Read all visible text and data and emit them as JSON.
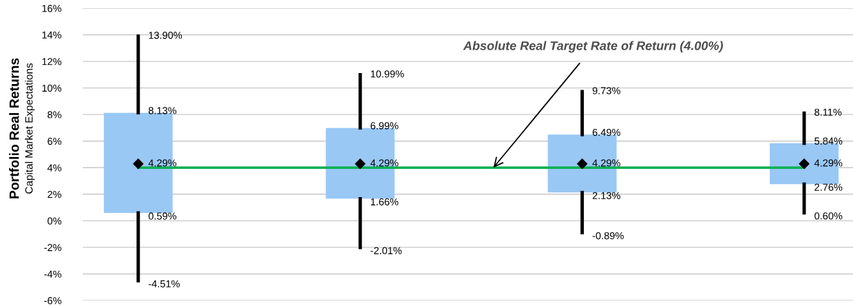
{
  "chart_data": {
    "type": "box",
    "ylabel": "Portfolio Real Returns",
    "subtitle": "Capital Market Expectations",
    "categories": [
      null,
      null,
      null,
      null
    ],
    "color": "#99c8f5",
    "boxes": [
      {
        "low": -4.51,
        "q1": 0.59,
        "median": 4.29,
        "q3": 8.13,
        "high": 13.9
      },
      {
        "low": -2.01,
        "q1": 1.66,
        "median": 4.29,
        "q3": 6.99,
        "high": 10.99
      },
      {
        "low": -0.89,
        "q1": 2.13,
        "median": 4.29,
        "q3": 6.49,
        "high": 9.73
      },
      {
        "low": 0.6,
        "q1": 2.76,
        "median": 4.29,
        "q3": 5.84,
        "high": 8.11
      }
    ],
    "marker": "diamond",
    "value_labels": [
      [
        "-4.51%",
        "0.59%",
        "4.29%",
        "8.13%",
        "13.90%"
      ],
      [
        "-2.01%",
        "1.66%",
        "4.29%",
        "6.99%",
        "10.99%"
      ],
      [
        "-0.89%",
        "2.13%",
        "4.29%",
        "6.49%",
        "9.73%"
      ],
      [
        "0.60%",
        "2.76%",
        "4.29%",
        "5.84%",
        "8.11%"
      ]
    ],
    "ref_lines": [
      {
        "axis": "y",
        "value": 4.0,
        "label": "Absolute Real Target Rate of Return (4.00%)",
        "color": "#00b050"
      }
    ],
    "ylim": [
      -6,
      16
    ],
    "yticks": [
      {
        "value": -6,
        "label": "-6%"
      },
      {
        "value": -4,
        "label": "-4%"
      },
      {
        "value": -2,
        "label": "-2%"
      },
      {
        "value": 0,
        "label": "0%"
      },
      {
        "value": 2,
        "label": "2%"
      },
      {
        "value": 4,
        "label": "4%"
      },
      {
        "value": 6,
        "label": "6%"
      },
      {
        "value": 8,
        "label": "8%"
      },
      {
        "value": 10,
        "label": "10%"
      },
      {
        "value": 12,
        "label": "12%"
      },
      {
        "value": 14,
        "label": "14%"
      },
      {
        "value": 16,
        "label": "16%"
      }
    ],
    "grid": "y"
  }
}
